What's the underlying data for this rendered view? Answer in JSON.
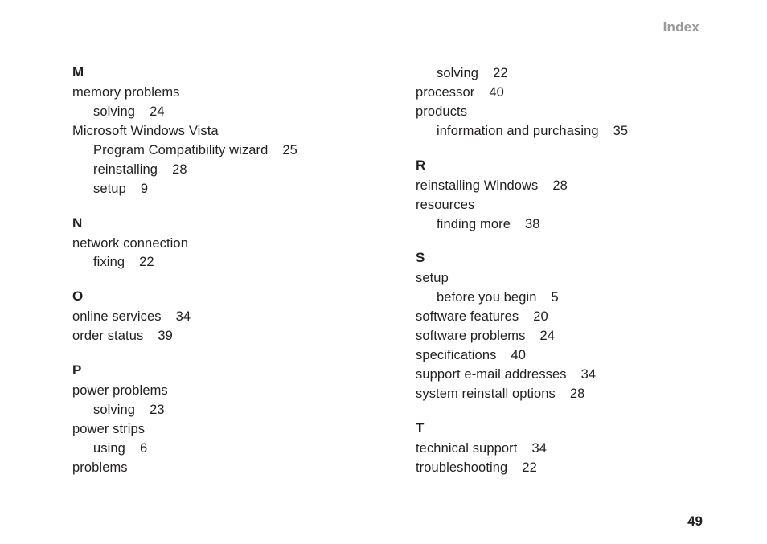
{
  "header": "Index",
  "pageNumber": "49",
  "left": {
    "M": {
      "letter": "M",
      "e0": {
        "term": "memory problems"
      },
      "e0s0": {
        "term": "solving",
        "page": "24"
      },
      "e1": {
        "term": "Microsoft Windows Vista"
      },
      "e1s0": {
        "term": "Program Compatibility wizard",
        "page": "25"
      },
      "e1s1": {
        "term": "reinstalling",
        "page": "28"
      },
      "e1s2": {
        "term": "setup",
        "page": "9"
      }
    },
    "N": {
      "letter": "N",
      "e0": {
        "term": "network connection"
      },
      "e0s0": {
        "term": "fixing",
        "page": "22"
      }
    },
    "O": {
      "letter": "O",
      "e0": {
        "term": "online services",
        "page": "34"
      },
      "e1": {
        "term": "order status",
        "page": "39"
      }
    },
    "P": {
      "letter": "P",
      "e0": {
        "term": "power problems"
      },
      "e0s0": {
        "term": "solving",
        "page": "23"
      },
      "e1": {
        "term": "power strips"
      },
      "e1s0": {
        "term": "using",
        "page": "6"
      },
      "e2": {
        "term": "problems"
      }
    }
  },
  "right": {
    "Pcont": {
      "e0s0": {
        "term": "solving",
        "page": "22"
      },
      "e1": {
        "term": "processor",
        "page": "40"
      },
      "e2": {
        "term": "products"
      },
      "e2s0": {
        "term": "information and purchasing",
        "page": "35"
      }
    },
    "R": {
      "letter": "R",
      "e0": {
        "term": "reinstalling Windows",
        "page": "28"
      },
      "e1": {
        "term": "resources"
      },
      "e1s0": {
        "term": "finding more",
        "page": "38"
      }
    },
    "S": {
      "letter": "S",
      "e0": {
        "term": "setup"
      },
      "e0s0": {
        "term": "before you begin",
        "page": "5"
      },
      "e1": {
        "term": "software features",
        "page": "20"
      },
      "e2": {
        "term": "software problems",
        "page": "24"
      },
      "e3": {
        "term": "specifications",
        "page": "40"
      },
      "e4": {
        "term": "support e-mail addresses",
        "page": "34"
      },
      "e5": {
        "term": "system reinstall options",
        "page": "28"
      }
    },
    "T": {
      "letter": "T",
      "e0": {
        "term": "technical support",
        "page": "34"
      },
      "e1": {
        "term": "troubleshooting",
        "page": "22"
      }
    }
  }
}
